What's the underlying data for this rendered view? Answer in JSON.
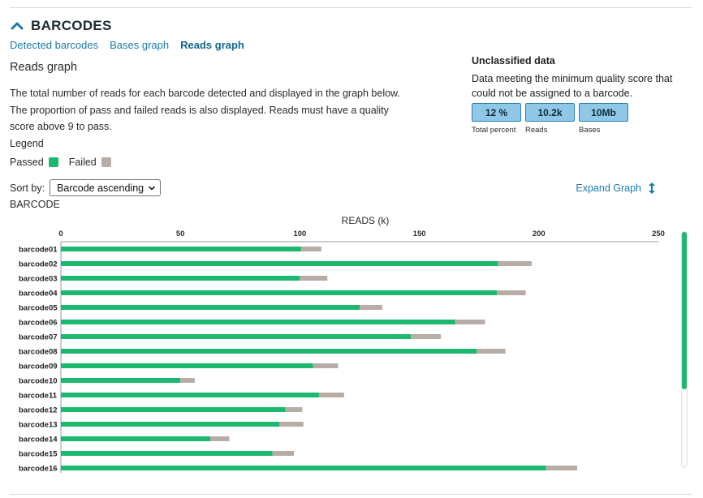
{
  "section": {
    "title": "BARCODES"
  },
  "tabs": [
    {
      "label": "Detected barcodes",
      "active": false
    },
    {
      "label": "Bases graph",
      "active": false
    },
    {
      "label": "Reads graph",
      "active": true
    }
  ],
  "reads_graph": {
    "title": "Reads graph",
    "description": "The total number of reads for each barcode detected and displayed in the graph below. The proportion of pass and failed reads is also displayed. Reads must have a quality score above 9 to pass.",
    "legend_title": "Legend",
    "legend": [
      {
        "label": "Passed",
        "color": "#1db86f"
      },
      {
        "label": "Failed",
        "color": "#b7aca6"
      }
    ],
    "sort_label": "Sort by:",
    "sort_value": "Barcode ascending",
    "expand_label": "Expand Graph",
    "y_axis_label": "BARCODE"
  },
  "unclassified": {
    "title": "Unclassified data",
    "description": "Data meeting the minimum quality score that could not be assigned to a barcode.",
    "stats": [
      {
        "value": "12 %",
        "caption": "Total percent"
      },
      {
        "value": "10.2k",
        "caption": "Reads"
      },
      {
        "value": "10Mb",
        "caption": "Bases"
      }
    ]
  },
  "colors": {
    "passed": "#1db86f",
    "failed": "#b7aca6",
    "link": "#1a7bab",
    "accent_box": "#8fc7e6"
  },
  "chart_data": {
    "type": "bar",
    "orientation": "horizontal",
    "stacked": true,
    "xlabel": "READS (k)",
    "xlim": [
      0,
      250
    ],
    "xticks": [
      0,
      50,
      100,
      150,
      200,
      250
    ],
    "categories": [
      "barcode01",
      "barcode02",
      "barcode03",
      "barcode04",
      "barcode05",
      "barcode06",
      "barcode07",
      "barcode08",
      "barcode09",
      "barcode10",
      "barcode11",
      "barcode12",
      "barcode13",
      "barcode14",
      "barcode15",
      "barcode16"
    ],
    "series": [
      {
        "name": "Passed",
        "values": [
          100.5,
          183,
          100,
          182.5,
          125,
          165,
          146.5,
          174,
          105.5,
          50,
          108,
          94,
          91.5,
          62.5,
          88.5,
          203
        ]
      },
      {
        "name": "Failed",
        "values": [
          8.5,
          14,
          11.5,
          12,
          9.5,
          12.5,
          12.5,
          12,
          10.5,
          6,
          10.5,
          7,
          10,
          8,
          9,
          13
        ]
      }
    ]
  }
}
